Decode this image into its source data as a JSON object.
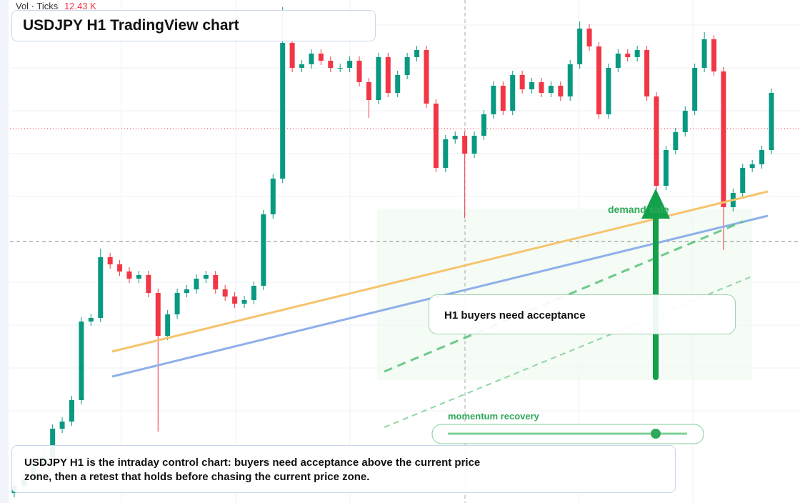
{
  "chart_data": {
    "type": "candlestick",
    "title": "USDJPY H1 TradingView chart",
    "indicator_label": "Vol · Ticks",
    "indicator_value": "12.43 K",
    "annotations": [
      "demand side",
      "H1 buyers need acceptance",
      "momentum recovery"
    ],
    "caption": "USDJPY H1 is the intraday control chart: buyers need acceptance above the current price zone, then a retest that holds before chasing the current price zone.",
    "up_color": "#089981",
    "down_color": "#f23645",
    "ylim": [
      0,
      704
    ],
    "open": [
      14,
      24,
      34,
      54,
      64,
      104,
      114,
      144,
      254,
      259,
      344,
      334,
      324,
      314,
      319,
      294,
      234,
      264,
      294,
      299,
      314,
      319,
      299,
      289,
      279,
      284,
      304,
      404,
      454,
      644,
      609,
      614,
      629,
      619,
      609,
      609,
      619,
      589,
      564,
      624,
      574,
      599,
      624,
      634,
      559,
      469,
      509,
      514,
      489,
      514,
      544,
      584,
      549,
      599,
      579,
      589,
      574,
      584,
      569,
      614,
      664,
      639,
      544,
      609,
      629,
      624,
      634,
      569,
      444,
      494,
      519,
      549,
      609,
      649,
      604,
      414,
      434,
      469,
      474,
      494
    ],
    "high": [
      30,
      40,
      60,
      70,
      110,
      120,
      150,
      260,
      265,
      356,
      350,
      340,
      330,
      325,
      325,
      300,
      270,
      300,
      305,
      320,
      325,
      325,
      305,
      295,
      290,
      310,
      410,
      460,
      694,
      650,
      620,
      635,
      635,
      625,
      615,
      625,
      625,
      595,
      630,
      630,
      605,
      630,
      640,
      640,
      565,
      515,
      520,
      520,
      520,
      550,
      590,
      590,
      605,
      605,
      595,
      595,
      590,
      590,
      620,
      674,
      670,
      645,
      615,
      635,
      635,
      640,
      640,
      575,
      500,
      525,
      555,
      615,
      659,
      655,
      610,
      440,
      475,
      480,
      500,
      580
    ],
    "low": [
      8,
      18,
      28,
      48,
      58,
      98,
      108,
      138,
      248,
      253,
      328,
      318,
      308,
      308,
      288,
      100,
      228,
      258,
      288,
      293,
      308,
      293,
      283,
      273,
      273,
      278,
      298,
      398,
      448,
      603,
      603,
      608,
      613,
      603,
      603,
      603,
      583,
      539,
      558,
      568,
      568,
      593,
      618,
      553,
      463,
      463,
      503,
      399,
      483,
      508,
      538,
      543,
      543,
      573,
      573,
      568,
      568,
      563,
      563,
      608,
      633,
      538,
      538,
      603,
      618,
      618,
      563,
      438,
      438,
      488,
      513,
      543,
      603,
      598,
      354,
      408,
      428,
      463,
      468,
      488
    ],
    "close": [
      24,
      34,
      54,
      64,
      104,
      114,
      144,
      254,
      259,
      344,
      334,
      324,
      314,
      319,
      294,
      234,
      264,
      294,
      299,
      314,
      319,
      299,
      289,
      279,
      284,
      304,
      404,
      454,
      644,
      609,
      614,
      629,
      619,
      609,
      609,
      619,
      589,
      564,
      624,
      574,
      599,
      624,
      634,
      559,
      469,
      509,
      514,
      489,
      514,
      544,
      584,
      549,
      599,
      579,
      589,
      574,
      584,
      569,
      614,
      664,
      639,
      544,
      609,
      629,
      624,
      634,
      569,
      444,
      494,
      519,
      549,
      609,
      649,
      604,
      414,
      434,
      469,
      474,
      494,
      574
    ]
  }
}
